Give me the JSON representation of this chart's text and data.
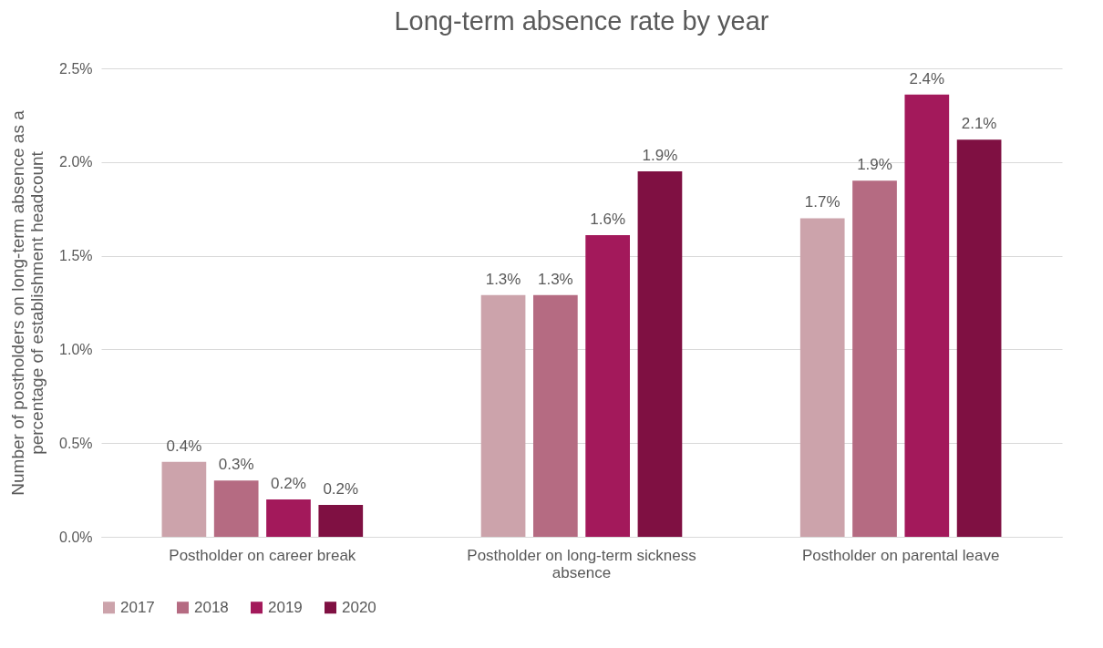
{
  "chart_data": {
    "type": "bar",
    "title": "Long-term absence rate by year",
    "ylabel": "Number of postholders on long-term absence as a percentage of establishment headcount",
    "categories": [
      "Postholder on career break",
      "Postholder on long-term sickness absence",
      "Postholder on parental leave"
    ],
    "series": [
      {
        "name": "2017",
        "color": "#cca3ab",
        "values": [
          0.4,
          1.29,
          1.7
        ],
        "value_labels": [
          "0.4%",
          "1.3%",
          "1.7%"
        ]
      },
      {
        "name": "2018",
        "color": "#b56b82",
        "values": [
          0.3,
          1.29,
          1.9
        ],
        "value_labels": [
          "0.3%",
          "1.3%",
          "1.9%"
        ]
      },
      {
        "name": "2019",
        "color": "#a3195b",
        "values": [
          0.2,
          1.61,
          2.36
        ],
        "value_labels": [
          "0.2%",
          "1.6%",
          "2.4%"
        ]
      },
      {
        "name": "2020",
        "color": "#7f1042",
        "values": [
          0.17,
          1.95,
          2.12
        ],
        "value_labels": [
          "0.2%",
          "1.9%",
          "2.1%"
        ]
      }
    ],
    "ylim": [
      0,
      2.5
    ],
    "yticks": [
      {
        "value": 0,
        "label": "0.0%"
      },
      {
        "value": 0.5,
        "label": "0.5%"
      },
      {
        "value": 1,
        "label": "1.0%"
      },
      {
        "value": 1.5,
        "label": "1.5%"
      },
      {
        "value": 2,
        "label": "2.0%"
      },
      {
        "value": 2.5,
        "label": "2.5%"
      }
    ],
    "grid": "y",
    "legend": "bottom"
  }
}
